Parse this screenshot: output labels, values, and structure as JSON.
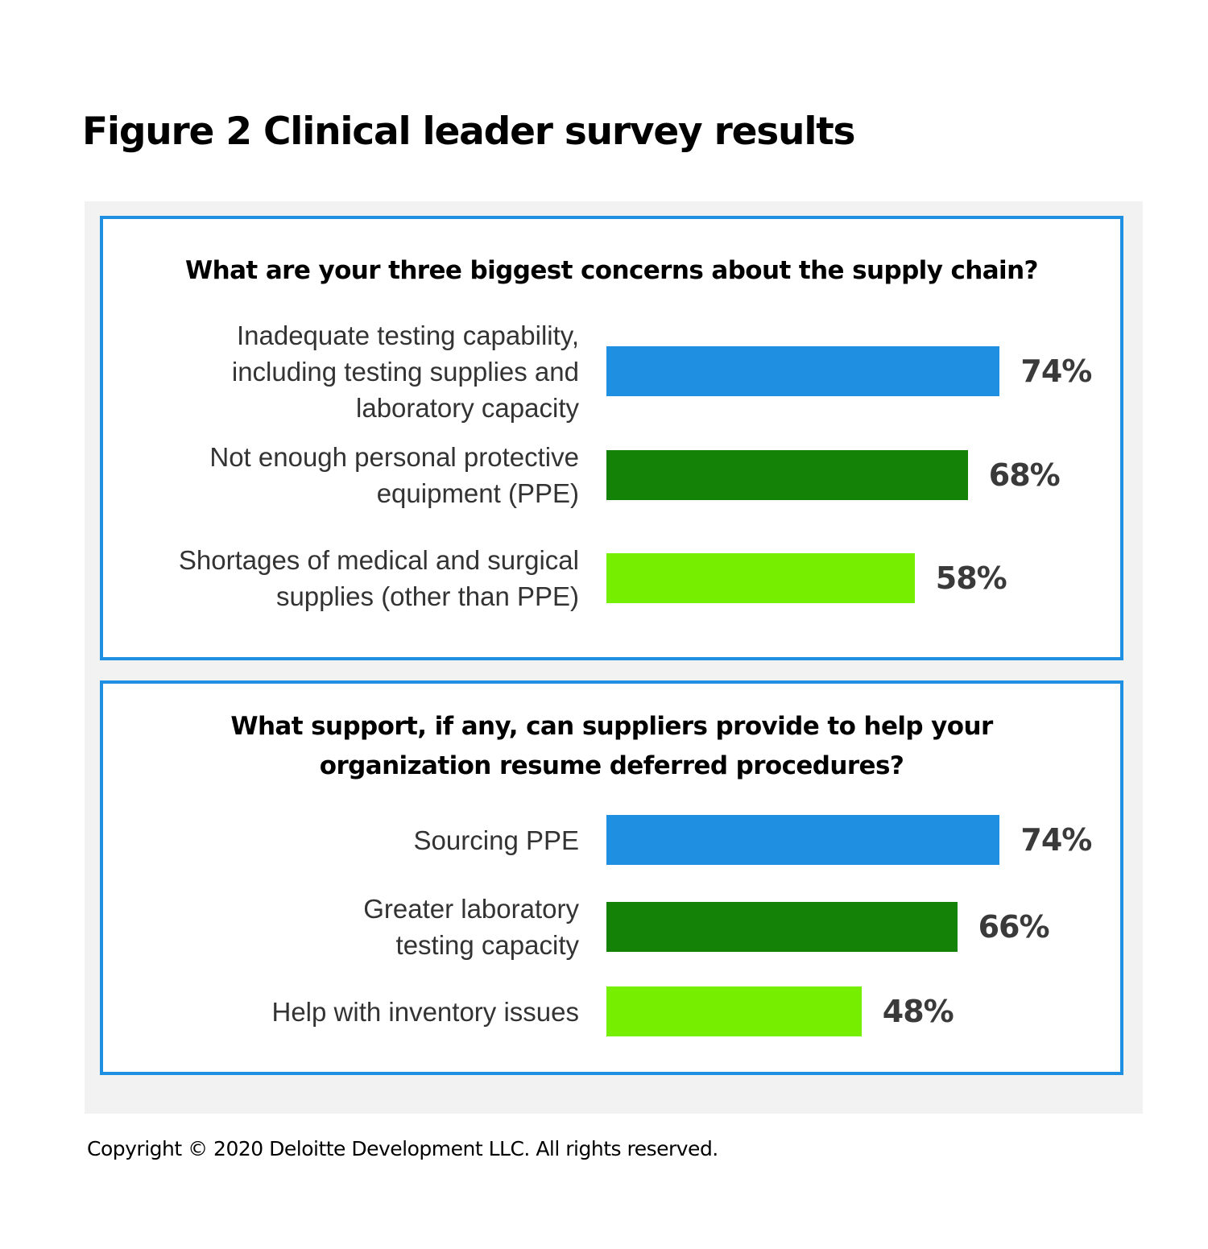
{
  "figure_title": "Figure 2  Clinical leader survey results",
  "copyright": "Copyright © 2020 Deloitte Development LLC. All rights reserved.",
  "colors": {
    "panel_border": "#1e8fe1",
    "background_panel": "#f2f2f2",
    "bar_1": "#1e8fe1",
    "bar_2": "#138207",
    "bar_3": "#76ee00",
    "value_text": "#3a3a3a"
  },
  "chart_data": [
    {
      "type": "bar",
      "orientation": "horizontal",
      "title": "What are your three biggest concerns about the supply chain?",
      "title_lines": [
        "What are your three biggest concerns about the supply chain?"
      ],
      "categories": [
        "Inadequate testing capability, including testing supplies and laboratory capacity",
        "Not enough personal protective equipment (PPE)",
        "Shortages of medical and surgical supplies (other than PPE)"
      ],
      "category_lines": [
        [
          "Inadequate testing capability,",
          "including testing supplies and",
          "laboratory capacity"
        ],
        [
          "Not enough personal protective",
          "equipment (PPE)"
        ],
        [
          "Shortages of medical and surgical",
          "supplies (other than PPE)"
        ]
      ],
      "values": [
        74,
        68,
        58
      ],
      "value_labels": [
        "74%",
        "68%",
        "58%"
      ],
      "unit": "%",
      "xlim": [
        0,
        100
      ],
      "grid": false,
      "legend": false
    },
    {
      "type": "bar",
      "orientation": "horizontal",
      "title": "What support, if any, can suppliers provide to help your organization resume deferred procedures?",
      "title_lines": [
        "What support, if any, can suppliers provide to help your",
        "organization resume deferred procedures?"
      ],
      "categories": [
        "Sourcing PPE",
        "Greater laboratory testing capacity",
        "Help with inventory issues"
      ],
      "category_lines": [
        [
          "Sourcing PPE"
        ],
        [
          "Greater laboratory",
          "testing capacity"
        ],
        [
          "Help with inventory issues"
        ]
      ],
      "values": [
        74,
        66,
        48
      ],
      "value_labels": [
        "74%",
        "66%",
        "48%"
      ],
      "unit": "%",
      "xlim": [
        0,
        100
      ],
      "grid": false,
      "legend": false
    }
  ]
}
